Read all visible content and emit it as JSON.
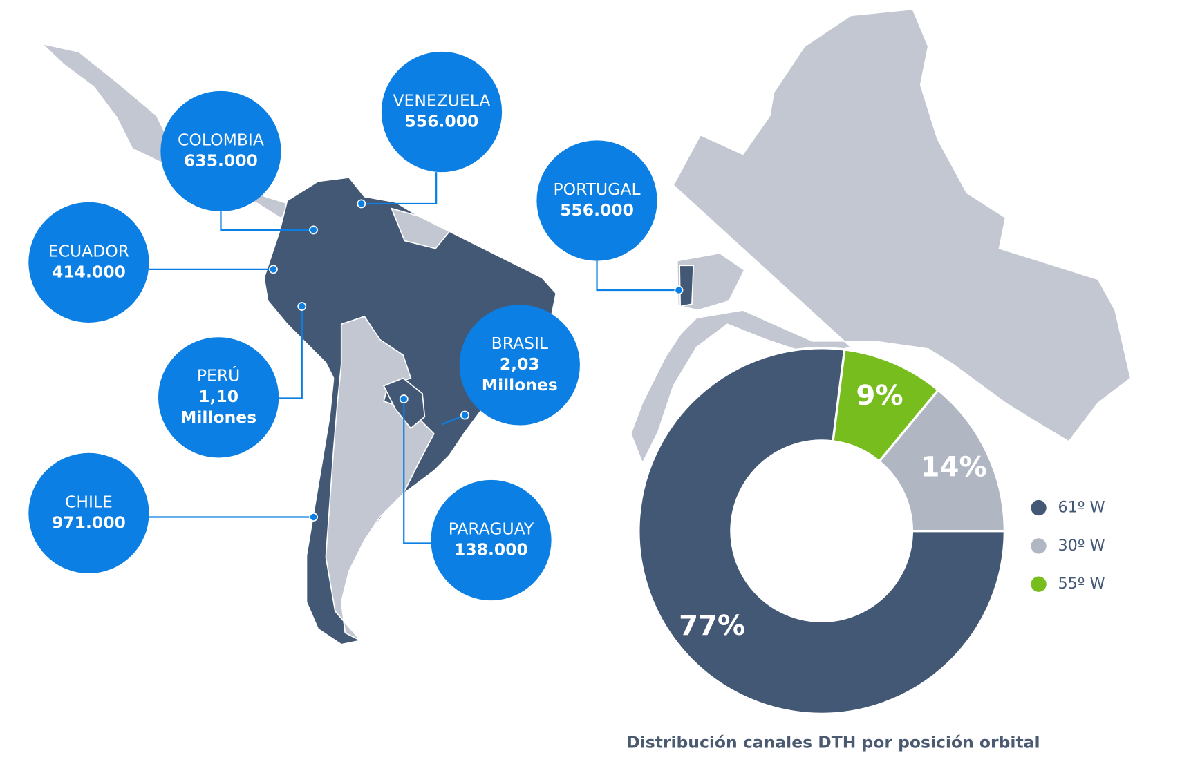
{
  "callouts": [
    {
      "country": "COLOMBIA",
      "value": "635.000"
    },
    {
      "country": "VENEZUELA",
      "value": "556.000"
    },
    {
      "country": "ECUADOR",
      "value": "414.000"
    },
    {
      "country": "PERÚ",
      "value": "1,10",
      "unit": "Millones"
    },
    {
      "country": "CHILE",
      "value": "971.000"
    },
    {
      "country": "BRASIL",
      "value": "2,03",
      "unit": "Millones"
    },
    {
      "country": "PARAGUAY",
      "value": "138.000"
    },
    {
      "country": "PORTUGAL",
      "value": "556.000"
    }
  ],
  "chart_data": {
    "type": "pie",
    "title": "Distribución canales DTH por posición orbital",
    "categories": [
      "61º W",
      "30º W",
      "55º W"
    ],
    "values": [
      77,
      14,
      9
    ],
    "value_labels": [
      "77%",
      "14%",
      "9%"
    ],
    "colors": [
      "#435874",
      "#b1b6c3",
      "#76bd1d"
    ],
    "legend": "right"
  }
}
